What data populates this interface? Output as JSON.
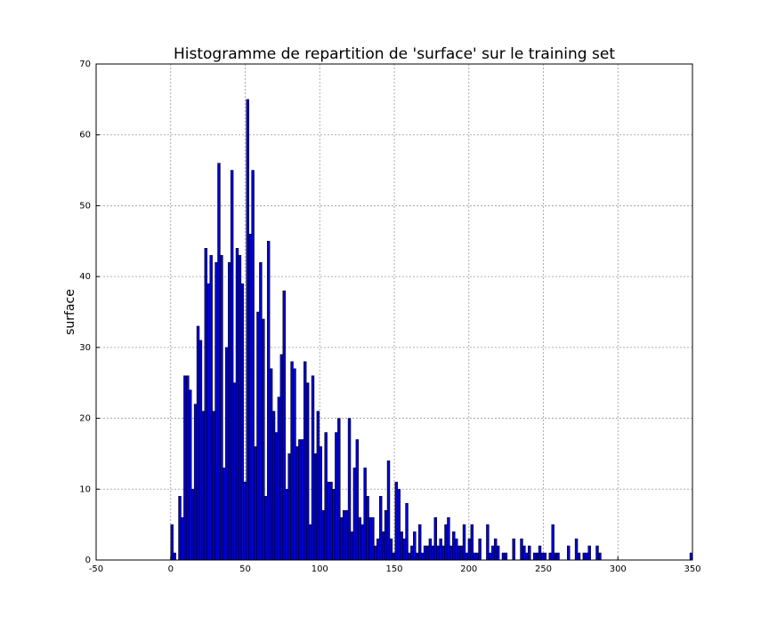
{
  "chart_data": {
    "type": "histogram",
    "title": "Histogramme de repartition de 'surface' sur le training set",
    "ylabel": "surface",
    "color": "#0000cc",
    "edgecolor": "#000000",
    "grid": true,
    "xlim": [
      -50,
      350
    ],
    "xticks": [
      -50,
      0,
      50,
      100,
      150,
      200,
      250,
      300,
      350
    ],
    "ylim": [
      0,
      70
    ],
    "yticks": [
      0,
      10,
      20,
      30,
      40,
      50,
      60,
      70
    ],
    "bins": [
      0,
      1.75,
      3.5,
      5.25,
      7,
      8.75,
      10.5,
      12.25,
      14,
      15.75,
      17.5,
      19.25,
      21,
      22.75,
      24.5,
      26.25,
      28,
      29.75,
      31.5,
      33.25,
      35,
      36.75,
      38.5,
      40.25,
      42,
      43.75,
      45.5,
      47.25,
      49,
      50.75,
      52.5,
      54.25,
      56,
      57.75,
      59.5,
      61.25,
      63,
      64.75,
      66.5,
      68.25,
      70,
      71.75,
      73.5,
      75.25,
      77,
      78.75,
      80.5,
      82.25,
      84,
      85.75,
      87.5,
      89.25,
      91,
      92.75,
      94.5,
      96.25,
      98,
      99.75,
      101.5,
      103.25,
      105,
      106.75,
      108.5,
      110.25,
      112,
      113.75,
      115.5,
      117.25,
      119,
      120.75,
      122.5,
      124.25,
      126,
      127.75,
      129.5,
      131.25,
      133,
      134.75,
      136.5,
      138.25,
      140,
      141.75,
      143.5,
      145.25,
      147,
      148.75,
      150.5,
      152.25,
      154,
      155.75,
      157.5,
      159.25,
      161,
      162.75,
      164.5,
      166.25,
      168,
      169.75,
      171.5,
      173.25,
      175,
      176.75,
      178.5,
      180.25,
      182,
      183.75,
      185.5,
      187.25,
      189,
      190.75,
      192.5,
      194.25,
      196,
      197.75,
      199.5,
      201.25,
      203,
      204.75,
      206.5,
      208.25,
      210,
      211.75,
      213.5,
      215.25,
      217,
      218.75,
      220.5,
      222.25,
      224,
      225.75,
      227.5,
      229.25,
      231,
      232.75,
      234.5,
      236.25,
      238,
      239.75,
      241.5,
      243.25,
      245,
      246.75,
      248.5,
      250.25,
      252,
      253.75,
      255.5,
      257.25,
      259,
      260.75,
      262.5,
      264.25,
      266,
      267.75,
      269.5,
      271.25,
      273,
      274.75,
      276.5,
      278.25,
      280,
      281.75,
      283.5,
      285.25,
      287,
      288.75,
      290.5,
      292.25,
      294,
      295.75,
      297.5,
      299.25,
      301,
      302.75,
      304.5,
      306.25,
      308,
      309.75,
      311.5,
      313.25,
      315,
      316.75,
      318.5,
      320.25,
      322,
      323.75,
      325.5,
      327.25,
      329,
      330.75,
      332.5,
      334.25,
      336,
      337.75,
      339.5,
      341.25,
      343,
      344.75,
      346.5,
      348.25,
      350
    ],
    "counts": [
      5,
      1,
      0,
      9,
      6,
      26,
      26,
      24,
      10,
      22,
      33,
      31,
      21,
      44,
      39,
      43,
      21,
      42,
      56,
      43,
      13,
      30,
      42,
      55,
      25,
      44,
      43,
      39,
      11,
      65,
      46,
      55,
      16,
      35,
      42,
      34,
      9,
      45,
      27,
      21,
      18,
      23,
      29,
      38,
      10,
      15,
      28,
      27,
      16,
      17,
      17,
      28,
      25,
      5,
      26,
      15,
      21,
      16,
      7,
      18,
      11,
      11,
      10,
      18,
      20,
      6,
      7,
      7,
      20,
      4,
      13,
      17,
      6,
      5,
      13,
      9,
      6,
      6,
      2,
      3,
      9,
      4,
      7,
      14,
      3,
      1,
      11,
      10,
      4,
      3,
      8,
      1,
      2,
      4,
      1,
      5,
      1,
      2,
      2,
      3,
      2,
      6,
      2,
      3,
      2,
      5,
      6,
      2,
      4,
      3,
      2,
      2,
      5,
      1,
      3,
      5,
      1,
      1,
      3,
      0,
      0,
      5,
      1,
      2,
      3,
      2,
      0,
      1,
      1,
      0,
      0,
      3,
      0,
      0,
      3,
      2,
      1,
      2,
      0,
      1,
      1,
      2,
      1,
      1,
      0,
      1,
      5,
      1,
      1,
      0,
      0,
      0,
      2,
      0,
      0,
      3,
      1,
      0,
      1,
      1,
      2,
      0,
      0,
      2,
      1,
      0,
      0,
      0,
      0,
      0,
      0,
      0,
      0,
      0,
      0,
      0,
      0,
      0,
      0,
      0,
      0,
      0,
      0,
      0,
      0,
      0,
      0,
      0,
      0,
      0,
      0,
      0,
      0,
      0,
      0,
      0,
      0,
      0,
      0,
      1
    ]
  }
}
